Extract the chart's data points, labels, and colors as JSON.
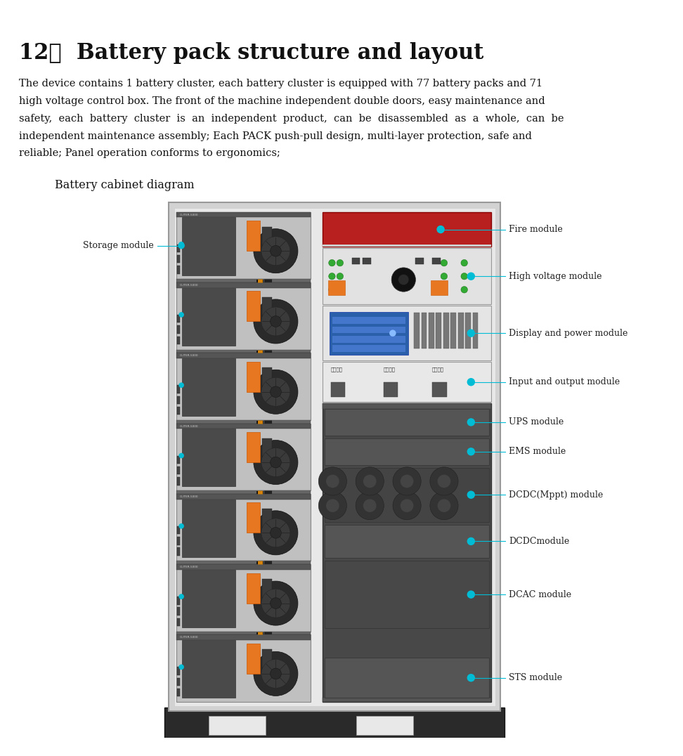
{
  "title": "12，  Battery pack structure and layout",
  "body_lines": [
    "The device contains 1 battery cluster, each battery cluster is equipped with 77 battery packs and 71",
    "high voltage control box. The front of the machine independent double doors, easy maintenance and",
    "safety,  each  battery  cluster  is  an  independent  product,  can  be  disassembled  as  a  whole,  can  be",
    "independent maintenance assembly; Each PACK push-pull design, multi-layer protection, safe and",
    "reliable; Panel operation conforms to ergonomics;"
  ],
  "subtitle": "Battery cabinet diagram",
  "teal": "#00bcd4",
  "orange": "#e87722",
  "bg_color": "#ffffff",
  "line_color": "#00bcd4"
}
